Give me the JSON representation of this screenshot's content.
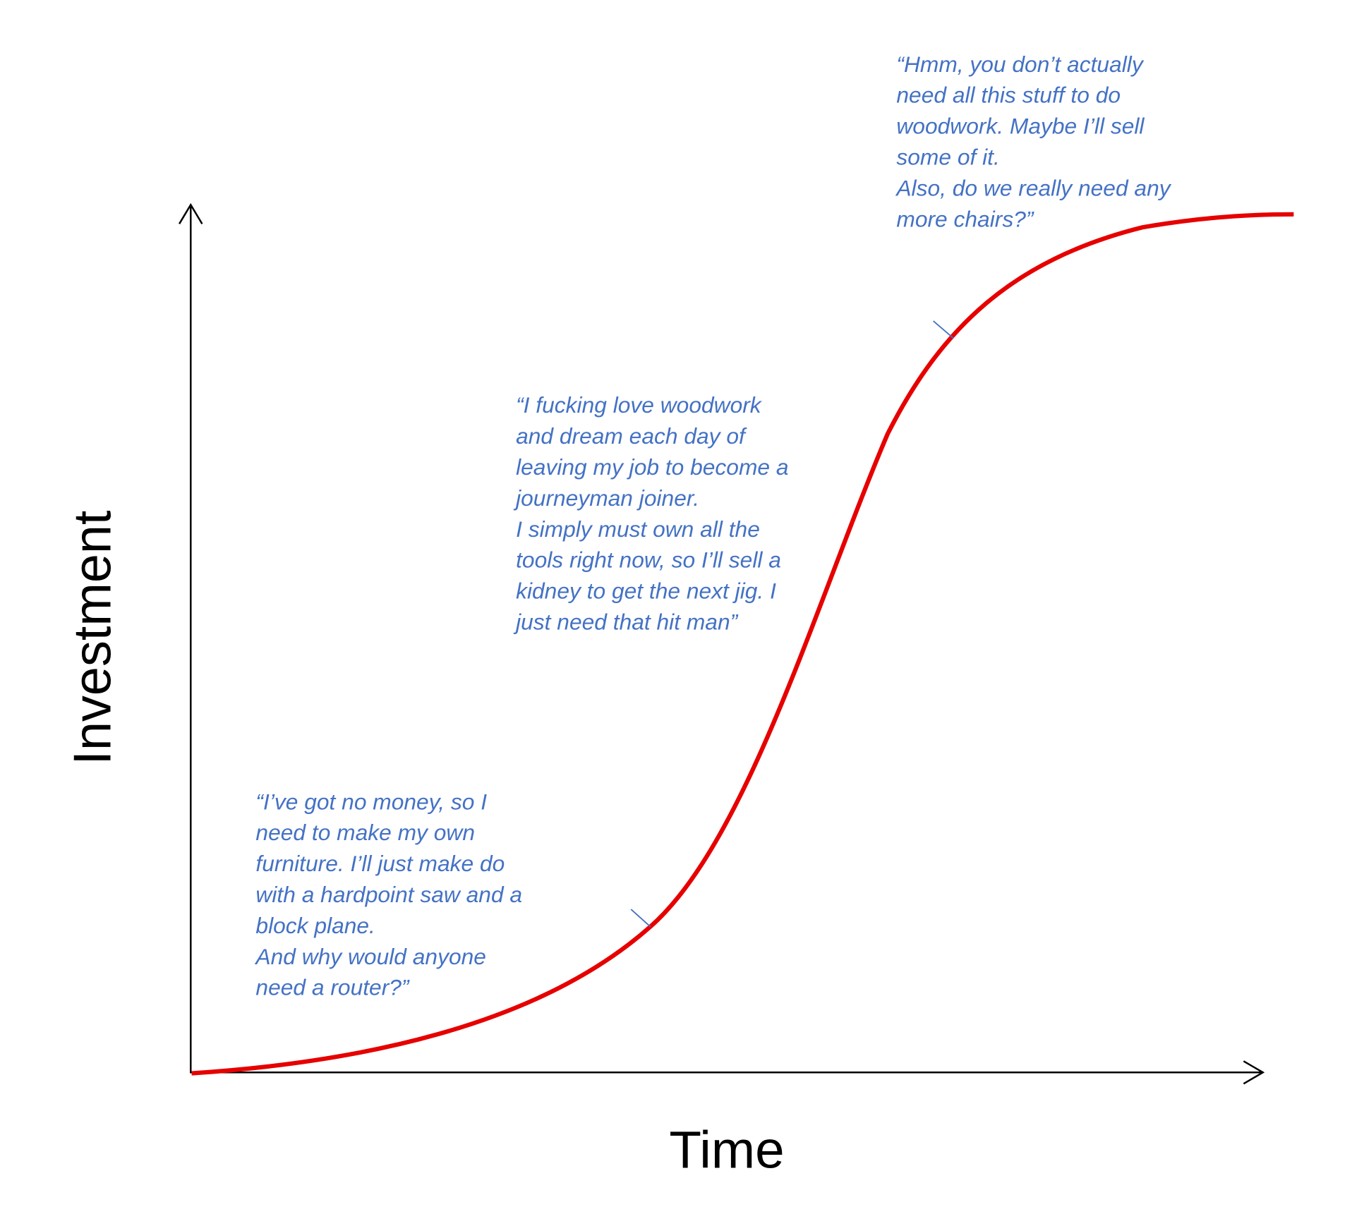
{
  "axes": {
    "x_label": "Time",
    "y_label": "Investment"
  },
  "annotations": [
    {
      "lines": [
        "“Hmm, you don’t actually",
        "need all this stuff to do",
        "woodwork. Maybe I’ll sell",
        "some of it.",
        "Also, do we really need any",
        "more chairs?”"
      ]
    },
    {
      "lines": [
        "“I fucking love woodwork",
        "and dream each day of",
        "leaving my job to become a",
        "journeyman joiner.",
        "I simply must own all the",
        "tools right now, so I’ll sell a",
        "kidney to get the next jig. I",
        "just need that hit man”"
      ]
    },
    {
      "lines": [
        "“I’ve got no money, so I",
        "need to make my own",
        "furniture. I’ll just make do",
        "with a hardpoint saw and a",
        "block plane.",
        "And why would anyone",
        "need a router?”"
      ]
    }
  ]
}
